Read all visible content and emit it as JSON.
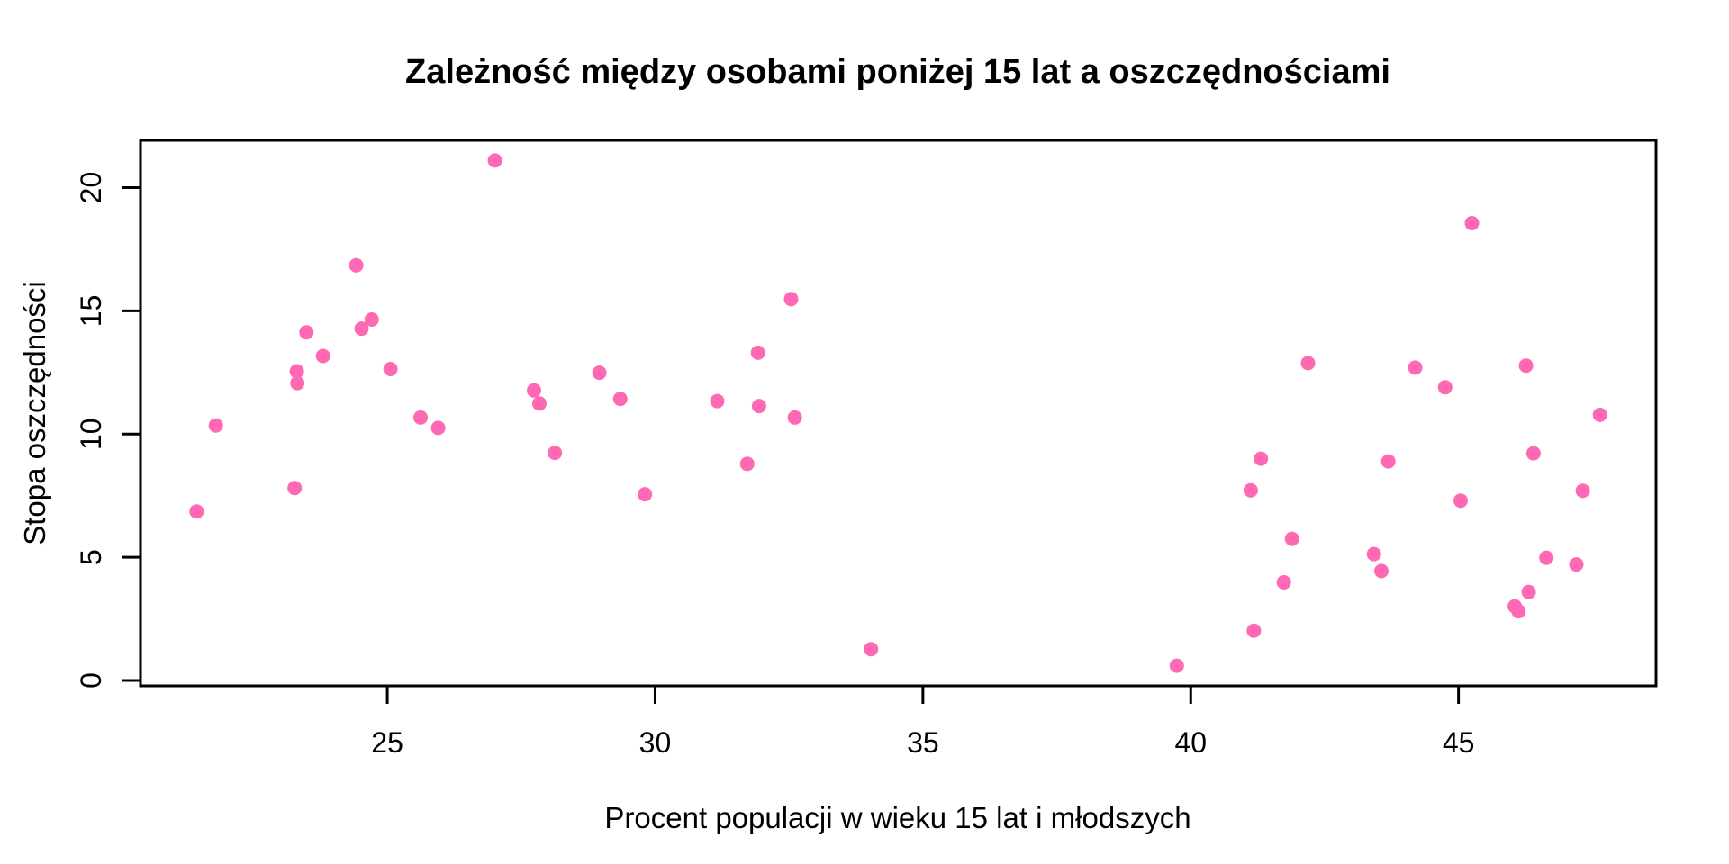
{
  "chart_data": {
    "type": "scatter",
    "title": "Zależność między osobami poniżej 15 lat a oszczędnościami",
    "xlabel": "Procent populacji w wieku 15 lat i młodszych",
    "ylabel": "Stopa oszczędności",
    "x_ticks": [
      25,
      30,
      35,
      40,
      45
    ],
    "y_ticks": [
      0,
      5,
      10,
      15,
      20
    ],
    "xlim": [
      20.392,
      48.688
    ],
    "ylim": [
      -0.22,
      21.92
    ],
    "grid": false,
    "legend": false,
    "marker": "filled-circle",
    "point_color": "#FF69B4",
    "axis_color": "#000000",
    "background_color": "#FFFFFF",
    "points": [
      [
        29.35,
        11.43
      ],
      [
        23.32,
        12.07
      ],
      [
        23.8,
        13.17
      ],
      [
        41.89,
        5.75
      ],
      [
        42.19,
        12.88
      ],
      [
        31.72,
        8.79
      ],
      [
        39.74,
        0.6
      ],
      [
        44.75,
        11.9
      ],
      [
        46.64,
        4.98
      ],
      [
        47.64,
        10.78
      ],
      [
        24.42,
        16.85
      ],
      [
        46.31,
        3.59
      ],
      [
        27.84,
        11.24
      ],
      [
        25.06,
        12.64
      ],
      [
        23.31,
        12.55
      ],
      [
        25.62,
        10.67
      ],
      [
        46.05,
        3.01
      ],
      [
        47.32,
        7.7
      ],
      [
        34.03,
        1.27
      ],
      [
        41.31,
        9.0
      ],
      [
        31.16,
        11.34
      ],
      [
        24.52,
        14.28
      ],
      [
        27.01,
        21.1
      ],
      [
        41.74,
        3.98
      ],
      [
        21.8,
        10.35
      ],
      [
        32.54,
        15.48
      ],
      [
        25.95,
        10.25
      ],
      [
        24.71,
        14.65
      ],
      [
        32.61,
        10.67
      ],
      [
        45.04,
        7.3
      ],
      [
        43.56,
        4.44
      ],
      [
        41.18,
        2.02
      ],
      [
        44.19,
        12.7
      ],
      [
        46.26,
        12.78
      ],
      [
        28.96,
        12.49
      ],
      [
        31.94,
        11.14
      ],
      [
        31.92,
        13.3
      ],
      [
        27.74,
        11.77
      ],
      [
        21.44,
        6.86
      ],
      [
        23.49,
        14.13
      ],
      [
        43.42,
        5.13
      ],
      [
        46.12,
        2.81
      ],
      [
        23.27,
        7.81
      ],
      [
        29.81,
        7.56
      ],
      [
        46.4,
        9.22
      ],
      [
        45.25,
        18.56
      ],
      [
        41.12,
        7.72
      ],
      [
        28.13,
        9.24
      ],
      [
        43.69,
        8.89
      ],
      [
        47.2,
        4.71
      ]
    ]
  }
}
